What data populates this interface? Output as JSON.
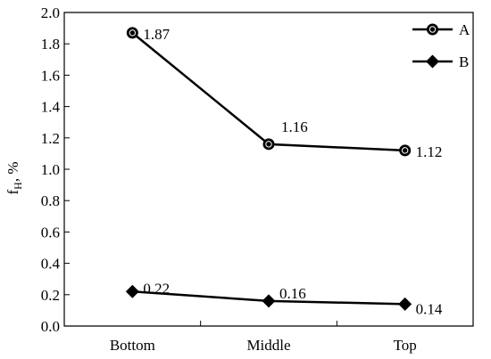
{
  "chart_data": {
    "type": "line",
    "categories": [
      "Bottom",
      "Middle",
      "Top"
    ],
    "ylabel_main": "f",
    "ylabel_sub": "H",
    "ylabel_unit": ", %",
    "ylim": [
      0,
      2.0
    ],
    "ytick_step": 0.2,
    "grid": false,
    "legend_position": "top-right",
    "series": [
      {
        "name": "A",
        "marker": "circle",
        "values": [
          1.87,
          1.16,
          1.12
        ],
        "labels": [
          "1.87",
          "1.16",
          "1.12"
        ]
      },
      {
        "name": "B",
        "marker": "diamond",
        "values": [
          0.22,
          0.16,
          0.14
        ],
        "labels": [
          "0.22",
          "0.16",
          "0.14"
        ]
      }
    ],
    "colors": {
      "line": "#000000",
      "axis": "#000000"
    }
  }
}
